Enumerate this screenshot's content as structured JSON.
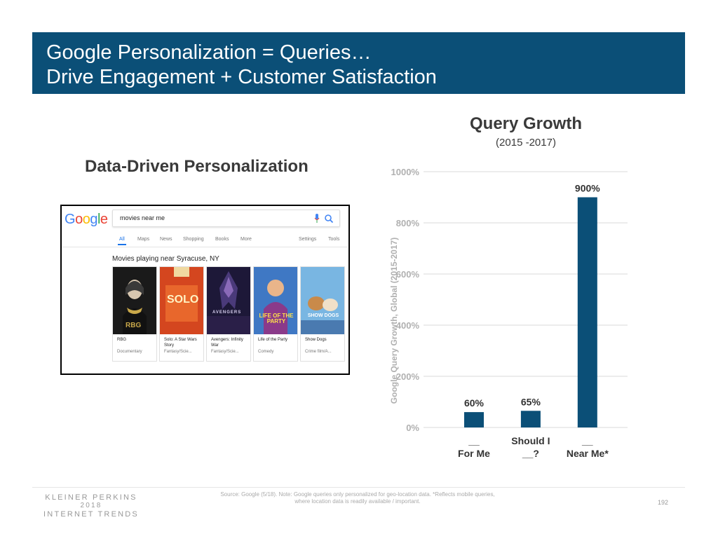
{
  "header": {
    "title_line1": "Google Personalization = Queries…",
    "title_line2": "Drive Engagement + Customer Satisfaction"
  },
  "left_panel": {
    "title": "Data-Driven Personalization",
    "screenshot": {
      "logo": "Google",
      "search_query": "movies near me",
      "nav_tabs": [
        "All",
        "Maps",
        "News",
        "Shopping",
        "Books",
        "More"
      ],
      "nav_tools": [
        "Settings",
        "Tools"
      ],
      "heading": "Movies playing near Syracuse, NY",
      "movies": [
        {
          "title": "RBG",
          "genre": "Documentary",
          "poster_text": "RBG"
        },
        {
          "title": "Solo: A Star Wars Story",
          "genre": "Fantasy/Scie...",
          "poster_text": "SOLO"
        },
        {
          "title": "Avengers: Infinity War",
          "genre": "Fantasy/Scie...",
          "poster_text": "AVENGERS"
        },
        {
          "title": "Life of the Party",
          "genre": "Comedy",
          "poster_text": "LIFE OF THE PARTY"
        },
        {
          "title": "Show Dogs",
          "genre": "Crime film/A...",
          "poster_text": "SHOW DOGS"
        }
      ]
    }
  },
  "chart_data": {
    "type": "bar",
    "title": "Query Growth",
    "subtitle": "(2015 -2017)",
    "ylabel": "Google Query Growth, Global (2015-2017)",
    "xlabel": "",
    "ylim": [
      0,
      1000
    ],
    "yticks": [
      0,
      200,
      400,
      600,
      800,
      1000
    ],
    "ytick_labels": [
      "0%",
      "200%",
      "400%",
      "600%",
      "800%",
      "1000%"
    ],
    "categories": [
      [
        "__",
        "For Me"
      ],
      [
        "Should I",
        "__?"
      ],
      [
        "__",
        "Near Me*"
      ]
    ],
    "values": [
      60,
      65,
      900
    ],
    "value_labels": [
      "60%",
      "65%",
      "900%"
    ],
    "grid": true,
    "bar_color": "#0b4f77"
  },
  "footer": {
    "logo_line1": "KLEINER PERKINS",
    "logo_line2": "2018",
    "logo_line3": "INTERNET TRENDS",
    "source_line1": "Source: Google (5/18). Note: Google queries only personalized for geo-location data. *Reflects mobile queries,",
    "source_line2": "where location data is readily available / important.",
    "page_number": "192"
  },
  "colors": {
    "banner": "#0b4f77",
    "bar": "#0b4f77"
  }
}
